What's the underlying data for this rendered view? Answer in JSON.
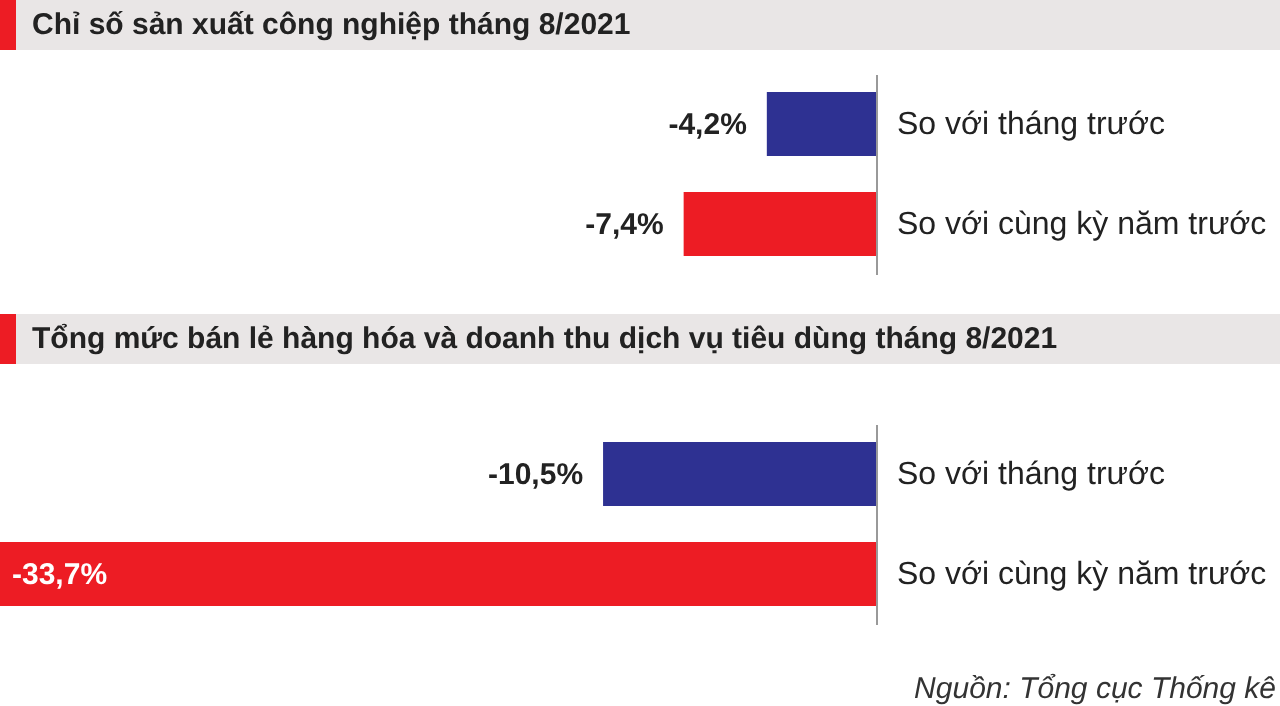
{
  "chart_data": [
    {
      "type": "bar",
      "orientation": "horizontal",
      "title": "Chỉ số sản xuất công nghiệp tháng 8/2021",
      "categories": [
        "So với tháng trước",
        "So với cùng kỳ năm trước"
      ],
      "values": [
        -4.2,
        -7.4
      ],
      "colors": [
        "#2e3192",
        "#ed1c24"
      ],
      "value_labels": [
        "-4,2%",
        "-7,4%"
      ],
      "xlim": [
        -33.7,
        0
      ]
    },
    {
      "type": "bar",
      "orientation": "horizontal",
      "title": "Tổng mức bán lẻ hàng hóa và doanh thu dịch vụ tiêu dùng tháng 8/2021",
      "categories": [
        "So với tháng trước",
        "So với cùng kỳ năm trước"
      ],
      "values": [
        -10.5,
        -33.7
      ],
      "colors": [
        "#2e3192",
        "#ed1c24"
      ],
      "value_labels": [
        "-10,5%",
        "-33,7%"
      ],
      "xlim": [
        -33.7,
        0
      ],
      "annotations": [
        "Nguồn: Tổng cục Thống kê"
      ]
    }
  ]
}
